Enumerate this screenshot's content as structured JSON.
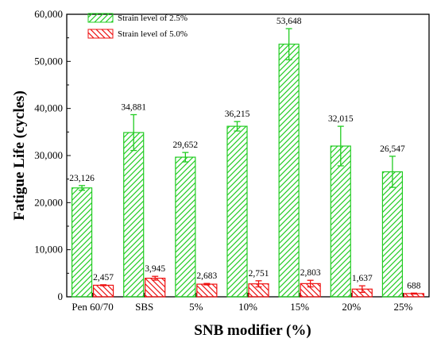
{
  "chart_data": {
    "type": "bar",
    "title": "",
    "xlabel": "SNB modifier (%)",
    "ylabel": "Fatigue Life (cycles)",
    "ylim": [
      0,
      60000
    ],
    "yticks": [
      0,
      10000,
      20000,
      30000,
      40000,
      50000,
      60000
    ],
    "ytick_labels": [
      "0",
      "10,000",
      "20,000",
      "30,000",
      "40,000",
      "50,000",
      "60,000"
    ],
    "categories": [
      "Pen 60/70",
      "SBS",
      "5%",
      "10%",
      "15%",
      "20%",
      "25%"
    ],
    "legend_position": "top-left",
    "grid": false,
    "series": [
      {
        "name": "Strain level of 2.5%",
        "color": "#22cc22",
        "pattern": "diagonal-hatch-right",
        "values": [
          23126,
          34881,
          29652,
          36215,
          53648,
          32015,
          26547
        ],
        "value_labels": [
          "23,126",
          "34,881",
          "29,652",
          "36,215",
          "53,648",
          "32,015",
          "26,547"
        ],
        "error": [
          500,
          3800,
          1000,
          1000,
          3300,
          4200,
          3300
        ]
      },
      {
        "name": "Strain level of 5.0%",
        "color": "#ee1111",
        "pattern": "diagonal-hatch-left",
        "values": [
          2457,
          3945,
          2683,
          2751,
          2803,
          1637,
          688
        ],
        "value_labels": [
          "2,457",
          "3,945",
          "2,683",
          "2,751",
          "2,803",
          "1,637",
          "688"
        ],
        "error": [
          100,
          400,
          150,
          650,
          700,
          700,
          100
        ]
      }
    ]
  }
}
